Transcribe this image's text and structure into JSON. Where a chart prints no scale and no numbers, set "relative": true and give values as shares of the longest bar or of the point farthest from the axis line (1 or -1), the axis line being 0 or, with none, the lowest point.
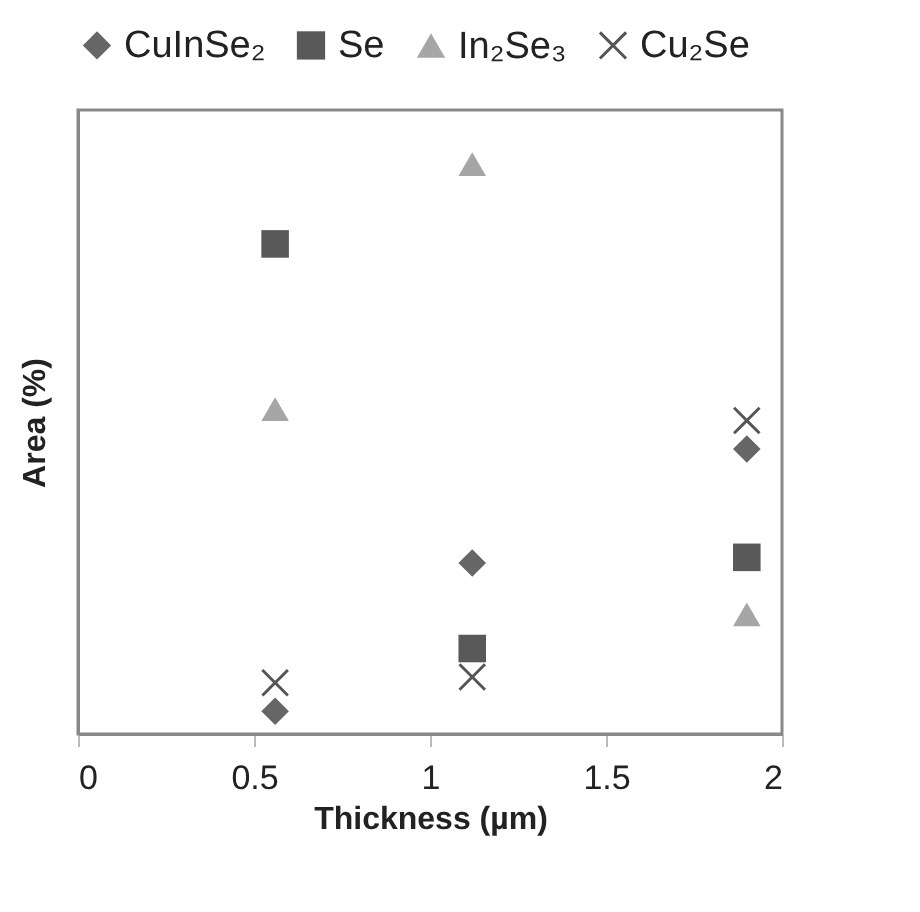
{
  "chart_data": {
    "type": "scatter",
    "xlabel": "Thickness (µm)",
    "ylabel": "Area (%)",
    "relative": true,
    "x": [
      0.56,
      1.12,
      1.9
    ],
    "xlim": [
      0,
      2
    ],
    "xticks": [
      0,
      0.5,
      1,
      1.5,
      2
    ],
    "grid": false,
    "legend": "top",
    "series": [
      {
        "name": "CuInSe₂",
        "color": "#666666",
        "marker": "diamond",
        "values": [
          0.04,
          0.3,
          0.5
        ]
      },
      {
        "name": "Se",
        "color": "#595959",
        "marker": "square",
        "values": [
          0.86,
          0.15,
          0.31
        ]
      },
      {
        "name": "In₂Se₃",
        "color": "#a6a6a6",
        "marker": "triangle",
        "values": [
          0.57,
          1,
          0.21
        ]
      },
      {
        "name": "Cu₂Se",
        "color": "#555555",
        "marker": "cross",
        "values": [
          0.09,
          0.1,
          0.55
        ]
      }
    ]
  }
}
